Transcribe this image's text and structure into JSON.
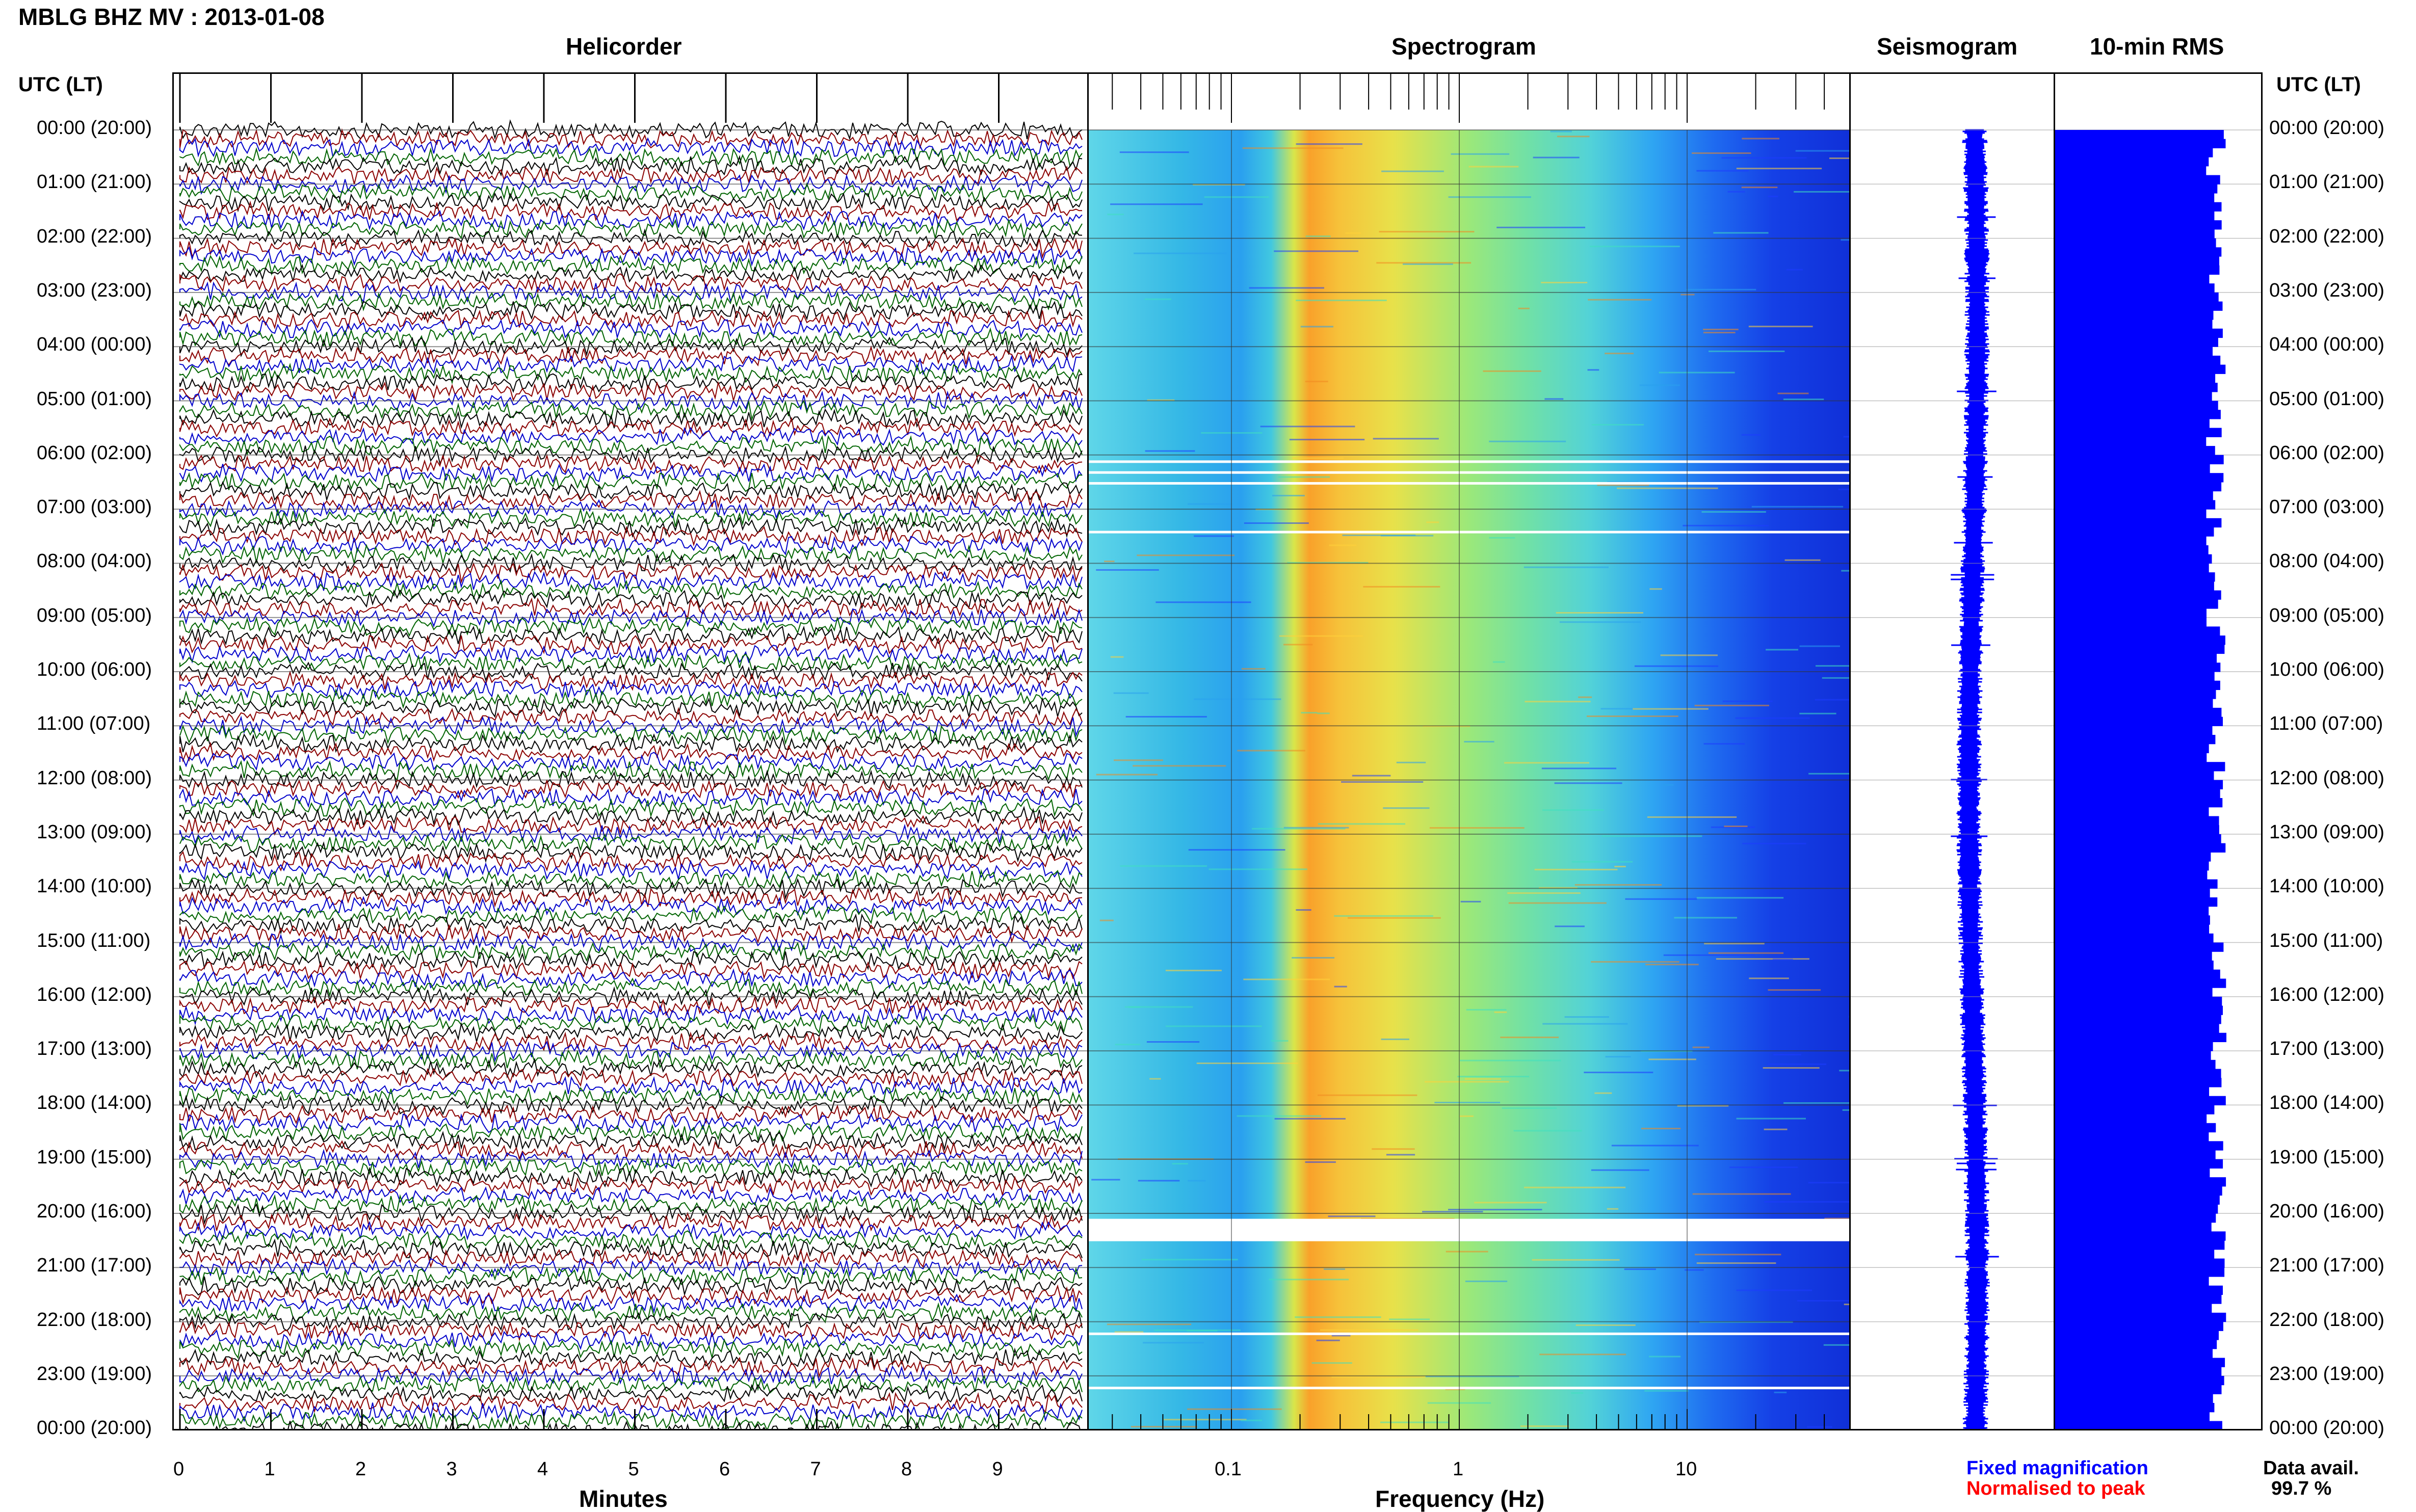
{
  "title": "MBLG BHZ MV : 2013-01-08",
  "panels": {
    "helicorder": "Helicorder",
    "spectrogram": "Spectrogram",
    "seismogram": "Seismogram",
    "rms": "10-min RMS"
  },
  "axis": {
    "time_header_left": "UTC (LT)",
    "time_header_right": "UTC (LT)",
    "helicorder_xlabel": "Minutes",
    "spectrogram_xlabel": "Frequency (Hz)",
    "helicorder_ticks": [
      "0",
      "1",
      "2",
      "3",
      "4",
      "5",
      "6",
      "7",
      "8",
      "9"
    ],
    "spectrogram_ticks": [
      "0.1",
      "1",
      "10"
    ],
    "time_labels": [
      "00:00 (20:00)",
      "01:00 (21:00)",
      "02:00 (22:00)",
      "03:00 (23:00)",
      "04:00 (00:00)",
      "05:00 (01:00)",
      "06:00 (02:00)",
      "07:00 (03:00)",
      "08:00 (04:00)",
      "09:00 (05:00)",
      "10:00 (06:00)",
      "11:00 (07:00)",
      "12:00 (08:00)",
      "13:00 (09:00)",
      "14:00 (10:00)",
      "15:00 (11:00)",
      "16:00 (12:00)",
      "17:00 (13:00)",
      "18:00 (14:00)",
      "19:00 (15:00)",
      "20:00 (16:00)",
      "21:00 (17:00)",
      "22:00 (18:00)",
      "23:00 (19:00)",
      "00:00 (20:00)"
    ]
  },
  "legend": {
    "fixed_magnification": "Fixed magnification",
    "normalised_to_peak": "Normalised to peak",
    "fixed_color": "#0000ff",
    "normalised_color": "#ff0000"
  },
  "data_availability": {
    "label": "Data avail.",
    "value": "99.7 %"
  },
  "colors": {
    "helicorder_traces": [
      "#000000",
      "#8b0000",
      "#0000cc",
      "#006400"
    ],
    "spectrogram_low": "#1e3cff",
    "spectrogram_mid": "#40e0c0",
    "spectrogram_high": "#ffa500",
    "rms_bar": "#0000ff",
    "seismogram_trace": "#0000ff"
  }
}
